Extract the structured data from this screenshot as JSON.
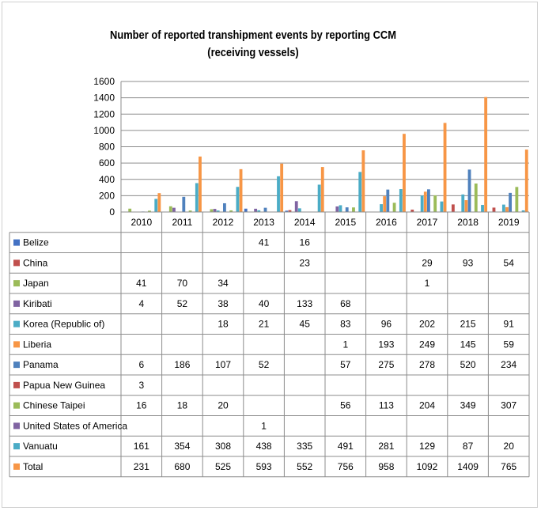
{
  "chart_data": {
    "type": "bar",
    "title": "Number of reported transhipment  events by reporting CCM",
    "subtitle": "(receiving vessels)",
    "categories": [
      "2010",
      "2011",
      "2012",
      "2013",
      "2014",
      "2015",
      "2016",
      "2017",
      "2018",
      "2019"
    ],
    "ylim": [
      0,
      1600
    ],
    "yticks": [
      0,
      200,
      400,
      600,
      800,
      1000,
      1200,
      1400,
      1600
    ],
    "grid": true,
    "legend": "data table below chart",
    "series": [
      {
        "name": "Belize",
        "color": "#4472C4",
        "values": [
          null,
          null,
          null,
          41,
          16,
          null,
          null,
          null,
          null,
          null
        ]
      },
      {
        "name": "China",
        "color": "#C0504D",
        "values": [
          null,
          null,
          null,
          null,
          23,
          null,
          null,
          29,
          93,
          54
        ]
      },
      {
        "name": "Japan",
        "color": "#9BBB59",
        "values": [
          41,
          70,
          34,
          null,
          null,
          null,
          null,
          1,
          null,
          null
        ]
      },
      {
        "name": "Kiribati",
        "color": "#8064A2",
        "values": [
          4,
          52,
          38,
          40,
          133,
          68,
          null,
          null,
          null,
          null
        ]
      },
      {
        "name": "Korea (Republic of)",
        "color": "#4BACC6",
        "values": [
          null,
          null,
          18,
          21,
          45,
          83,
          96,
          202,
          215,
          91
        ]
      },
      {
        "name": "Liberia",
        "color": "#F79646",
        "values": [
          null,
          null,
          null,
          null,
          null,
          1,
          193,
          249,
          145,
          59
        ]
      },
      {
        "name": "Panama",
        "color": "#4F81BD",
        "values": [
          6,
          186,
          107,
          52,
          null,
          57,
          275,
          278,
          520,
          234
        ]
      },
      {
        "name": "Papua New Guinea",
        "color": "#C0504D",
        "values": [
          3,
          null,
          null,
          null,
          null,
          null,
          null,
          null,
          null,
          null
        ]
      },
      {
        "name": "Chinese Taipei",
        "color": "#9BBB59",
        "values": [
          16,
          18,
          20,
          null,
          null,
          56,
          113,
          204,
          349,
          307
        ]
      },
      {
        "name": "United States of America",
        "color": "#8064A2",
        "values": [
          null,
          null,
          null,
          1,
          null,
          null,
          null,
          null,
          null,
          null
        ]
      },
      {
        "name": "Vanuatu",
        "color": "#4BACC6",
        "values": [
          161,
          354,
          308,
          438,
          335,
          491,
          281,
          129,
          87,
          20
        ]
      },
      {
        "name": "Total",
        "color": "#F79646",
        "values": [
          231,
          680,
          525,
          593,
          552,
          756,
          958,
          1092,
          1409,
          765
        ]
      }
    ]
  }
}
